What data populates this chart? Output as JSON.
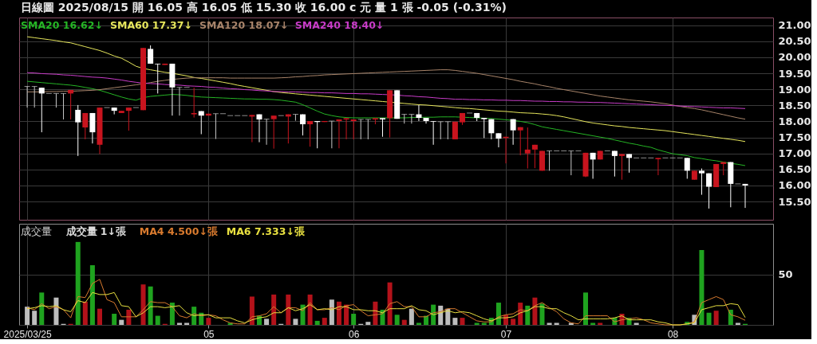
{
  "chart_data": [
    {
      "type": "candlestick",
      "title": "日線圖 2025/08/15 開 16.05 高 16.05 低 15.30 收 16.00 c 元 量 1 張 -0.05 (-0.31%)",
      "legend": "top left",
      "grid": true,
      "tick_labels": "y",
      "categories": [
        "2025/03/25",
        null,
        null,
        null,
        null,
        null,
        null,
        null,
        null,
        null,
        null,
        null,
        null,
        null,
        null,
        null,
        null,
        null,
        null,
        null,
        null,
        null,
        null,
        null,
        null,
        "05",
        null,
        null,
        null,
        null,
        null,
        null,
        null,
        null,
        null,
        null,
        null,
        null,
        null,
        null,
        null,
        null,
        null,
        null,
        null,
        "06",
        null,
        null,
        null,
        null,
        null,
        null,
        null,
        null,
        null,
        null,
        null,
        null,
        null,
        null,
        null,
        null,
        null,
        null,
        null,
        null,
        "07",
        null,
        null,
        null,
        null,
        null,
        null,
        null,
        null,
        null,
        null,
        null,
        null,
        null,
        null,
        null,
        null,
        null,
        null,
        null,
        null,
        null,
        null,
        "08",
        null,
        null,
        null,
        null,
        null,
        null,
        null,
        null,
        null,
        null
      ],
      "ylim": [
        14.93,
        21.24
      ],
      "yticks": [
        {
          "value": 15.5,
          "label": "15.50"
        },
        {
          "value": 16,
          "label": "16.00"
        },
        {
          "value": 16.5,
          "label": "16.50"
        },
        {
          "value": 17,
          "label": "17.00"
        },
        {
          "value": 17.5,
          "label": "17.50"
        },
        {
          "value": 18,
          "label": "18.00"
        },
        {
          "value": 18.5,
          "label": "18.50"
        },
        {
          "value": 19,
          "label": "19.00"
        },
        {
          "value": 19.5,
          "label": "19.50"
        },
        {
          "value": 20,
          "label": "20.00"
        },
        {
          "value": 20.5,
          "label": "20.50"
        },
        {
          "value": 21,
          "label": "21.00"
        }
      ],
      "ohlc": [
        [
          19.09,
          19.09,
          18.43,
          19.09
        ],
        [
          19.09,
          19.09,
          18.43,
          19.09
        ],
        [
          19.05,
          19.05,
          17.66,
          18.87
        ],
        [
          18.87,
          18.87,
          18.87,
          18.87
        ],
        [
          18.87,
          18.87,
          18.43,
          18.87
        ],
        [
          18.87,
          18.87,
          18.06,
          18.87
        ],
        [
          18.87,
          18.98,
          18.06,
          18.98
        ],
        [
          18.36,
          18.51,
          16.92,
          17.97
        ],
        [
          17.81,
          18.26,
          17.44,
          18.26
        ],
        [
          18.26,
          18.26,
          17.31,
          17.66
        ],
        [
          17.27,
          18.43,
          16.98,
          18.43
        ],
        [
          18.43,
          18.43,
          18.43,
          18.43
        ],
        [
          18.43,
          18.43,
          18.22,
          18.33
        ],
        [
          18.26,
          18.33,
          18.26,
          18.33
        ],
        [
          18.33,
          18.43,
          17.71,
          18.43
        ],
        [
          18.43,
          18.43,
          18.43,
          18.43
        ],
        [
          18.35,
          20.29,
          18.35,
          20.29
        ],
        [
          20.26,
          20.37,
          19.8,
          19.8
        ],
        [
          19.8,
          19.8,
          18.87,
          19.78
        ],
        [
          19.76,
          19.8,
          19.76,
          19.8
        ],
        [
          19.8,
          19.8,
          18.18,
          19.06
        ],
        [
          19.06,
          19.06,
          18.18,
          19.06
        ],
        [
          19.06,
          19.06,
          19.06,
          19.06
        ],
        [
          18.22,
          19.05,
          18.12,
          18.26
        ],
        [
          18.32,
          18.32,
          17.6,
          18.18
        ],
        [
          18.18,
          18.24,
          18.18,
          18.24
        ],
        [
          18.24,
          18.24,
          17.45,
          18.24
        ],
        [
          18.24,
          18.24,
          18.24,
          18.24
        ],
        [
          18.18,
          18.18,
          18.18,
          18.18
        ],
        [
          18.18,
          18.18,
          18.18,
          18.18
        ],
        [
          18.18,
          18.18,
          18.18,
          18.18
        ],
        [
          18.15,
          18.2,
          17.35,
          18.2
        ],
        [
          18.22,
          18.22,
          17.35,
          18.06
        ],
        [
          18.07,
          18.07,
          17.27,
          18.07
        ],
        [
          18.07,
          18.18,
          17.15,
          18.18
        ],
        [
          18.18,
          18.18,
          18.18,
          18.18
        ],
        [
          18.15,
          18.22,
          17.31,
          18.22
        ],
        [
          18.22,
          18.22,
          18.02,
          18.22
        ],
        [
          18.22,
          18.22,
          17.56,
          17.91
        ],
        [
          17.91,
          18.01,
          17.21,
          18.01
        ],
        [
          18.01,
          18.01,
          17.16,
          17.98
        ],
        [
          17.98,
          18.01,
          17.98,
          18.01
        ],
        [
          18.01,
          18.01,
          17.16,
          18.01
        ],
        [
          18.01,
          18.06,
          17.16,
          18.06
        ],
        [
          18.06,
          18.1,
          17.44,
          18.1
        ],
        [
          18.01,
          18.06,
          17.44,
          18.06
        ],
        [
          18.06,
          18.06,
          17.44,
          18.06
        ],
        [
          18.06,
          18.06,
          17.44,
          18.06
        ],
        [
          18.06,
          18.1,
          17.91,
          18.1
        ],
        [
          18.1,
          18.1,
          17.52,
          18.06
        ],
        [
          18.1,
          18.97,
          17.5,
          18.97
        ],
        [
          18.97,
          18.97,
          18.08,
          18.08
        ],
        [
          18.22,
          18.22,
          17.93,
          18.22
        ],
        [
          18.22,
          18.22,
          17.93,
          18.22
        ],
        [
          18.22,
          18.51,
          18.01,
          18.11
        ],
        [
          18.11,
          18.11,
          17.93,
          18.01
        ],
        [
          18.01,
          18.01,
          17.27,
          17.99
        ],
        [
          17.99,
          17.99,
          17.44,
          17.99
        ],
        [
          17.99,
          17.99,
          17.44,
          17.99
        ],
        [
          17.44,
          17.99,
          17.44,
          17.99
        ],
        [
          17.97,
          18.26,
          17.89,
          18.26
        ],
        [
          18.26,
          18.26,
          18.26,
          18.26
        ],
        [
          18.26,
          18.26,
          18.01,
          18.11
        ],
        [
          18.11,
          18.11,
          17.48,
          18.07
        ],
        [
          18.07,
          18.07,
          17.44,
          17.63
        ],
        [
          17.63,
          17.63,
          17.19,
          17.46
        ],
        [
          17.48,
          17.52,
          16.69,
          17.52
        ],
        [
          18.07,
          18.07,
          17.27,
          17.72
        ],
        [
          17.72,
          17.82,
          16.94,
          17.82
        ],
        [
          17.0,
          17.81,
          16.53,
          17.12
        ],
        [
          17.12,
          17.27,
          16.54,
          17.27
        ],
        [
          16.46,
          17.08,
          16.46,
          17.08
        ],
        [
          17.08,
          17.08,
          16.46,
          17.08
        ],
        [
          17.08,
          17.08,
          17.08,
          17.08
        ],
        [
          17.08,
          17.08,
          17.08,
          17.08
        ],
        [
          17.08,
          17.08,
          16.32,
          17.08
        ],
        [
          17.08,
          17.08,
          17.08,
          17.08
        ],
        [
          16.28,
          17.02,
          16.26,
          17.02
        ],
        [
          17.02,
          17.02,
          16.21,
          16.81
        ],
        [
          16.81,
          17.08,
          16.81,
          17.08
        ],
        [
          17.08,
          17.08,
          17.08,
          17.08
        ],
        [
          17.08,
          17.08,
          16.28,
          16.92
        ],
        [
          16.92,
          16.98,
          16.18,
          16.98
        ],
        [
          16.98,
          16.98,
          16.4,
          16.86
        ],
        [
          16.86,
          16.86,
          16.86,
          16.86
        ],
        [
          16.86,
          16.86,
          16.86,
          16.86
        ],
        [
          16.86,
          16.86,
          16.86,
          16.86
        ],
        [
          16.82,
          16.86,
          16.32,
          16.86
        ],
        [
          16.86,
          16.86,
          16.86,
          16.86
        ],
        [
          16.86,
          16.86,
          16.86,
          16.86
        ],
        [
          16.86,
          16.86,
          16.86,
          16.86
        ],
        [
          16.86,
          16.86,
          16.21,
          16.46
        ],
        [
          16.18,
          16.46,
          16.18,
          16.46
        ],
        [
          16.46,
          16.53,
          15.71,
          16.38
        ],
        [
          16.38,
          16.38,
          15.28,
          15.96
        ],
        [
          15.95,
          16.67,
          15.95,
          16.67
        ],
        [
          16.67,
          16.73,
          16.32,
          16.73
        ],
        [
          16.73,
          16.73,
          15.32,
          16.05
        ],
        [
          16.05,
          16.05,
          16.05,
          16.05
        ],
        [
          16.05,
          16.05,
          15.3,
          16.0
        ]
      ],
      "colors": [
        "#c8c8c8",
        "#c8c8c8",
        "#ffffff",
        "#c8c8c8",
        "#c8c8c8",
        "#c8c8c8",
        "#c8141e",
        "#ffffff",
        "#c8141e",
        "#ffffff",
        "#c8141e",
        "#c8c8c8",
        "#ffffff",
        "#c8141e",
        "#c8141e",
        "#c8c8c8",
        "#c8141e",
        "#ffffff",
        "#ffffff",
        "#c8141e",
        "#ffffff",
        "#c8c8c8",
        "#c8c8c8",
        "#c8141e",
        "#ffffff",
        "#c8141e",
        "#c8c8c8",
        "#c8c8c8",
        "#c8c8c8",
        "#c8c8c8",
        "#c8c8c8",
        "#c8141e",
        "#ffffff",
        "#c8c8c8",
        "#c8141e",
        "#c8c8c8",
        "#c8141e",
        "#c8c8c8",
        "#ffffff",
        "#c8141e",
        "#ffffff",
        "#c8141e",
        "#c8c8c8",
        "#c8141e",
        "#c8141e",
        "#c8141e",
        "#c8c8c8",
        "#c8c8c8",
        "#c8141e",
        "#ffffff",
        "#c8141e",
        "#ffffff",
        "#c8c8c8",
        "#c8c8c8",
        "#ffffff",
        "#ffffff",
        "#ffffff",
        "#c8c8c8",
        "#c8c8c8",
        "#c8141e",
        "#c8141e",
        "#c8c8c8",
        "#ffffff",
        "#ffffff",
        "#ffffff",
        "#ffffff",
        "#c8141e",
        "#ffffff",
        "#c8141e",
        "#c8141e",
        "#c8141e",
        "#c8141e",
        "#c8c8c8",
        "#c8c8c8",
        "#c8c8c8",
        "#c8c8c8",
        "#c8c8c8",
        "#c8141e",
        "#ffffff",
        "#c8141e",
        "#c8c8c8",
        "#ffffff",
        "#c8141e",
        "#ffffff",
        "#c8c8c8",
        "#c8c8c8",
        "#c8c8c8",
        "#c8141e",
        "#c8c8c8",
        "#c8c8c8",
        "#c8c8c8",
        "#ffffff",
        "#c8141e",
        "#ffffff",
        "#ffffff",
        "#c8141e",
        "#c8141e",
        "#ffffff",
        "#c8c8c8",
        "#ffffff"
      ],
      "series": [
        {
          "type": "line",
          "name": "SMA20 16.62↓",
          "color": "#25b525",
          "values": [
            19.25,
            19.23,
            19.21,
            19.19,
            19.17,
            19.15,
            19.13,
            19.1,
            19.06,
            19.02,
            18.97,
            18.9,
            18.83,
            18.76,
            18.7,
            18.66,
            18.74,
            18.78,
            18.8,
            18.82,
            18.84,
            18.83,
            18.81,
            18.78,
            18.76,
            18.75,
            18.74,
            18.73,
            18.72,
            18.71,
            18.7,
            18.7,
            18.69,
            18.69,
            18.68,
            18.66,
            18.63,
            18.6,
            18.52,
            18.42,
            18.32,
            18.23,
            18.18,
            18.14,
            18.12,
            18.11,
            18.11,
            18.11,
            18.11,
            18.11,
            18.11,
            18.11,
            18.11,
            18.12,
            18.12,
            18.13,
            18.13,
            18.14,
            18.14,
            18.14,
            18.13,
            18.12,
            18.11,
            18.1,
            18.09,
            18.07,
            18.05,
            18.03,
            18.0,
            17.96,
            17.9,
            17.83,
            17.79,
            17.75,
            17.71,
            17.67,
            17.63,
            17.59,
            17.55,
            17.51,
            17.47,
            17.42,
            17.37,
            17.32,
            17.28,
            17.23,
            17.19,
            17.11,
            17.05,
            16.99,
            16.96,
            16.93,
            16.87,
            16.84,
            16.8,
            16.77,
            16.73,
            16.69,
            16.66,
            16.62
          ]
        },
        {
          "type": "line",
          "name": "SMA60 17.37↓",
          "color": "#e6e65c",
          "values": [
            20.64,
            20.61,
            20.58,
            20.55,
            20.52,
            20.48,
            20.45,
            20.39,
            20.33,
            20.27,
            20.21,
            20.13,
            20.04,
            19.97,
            19.85,
            19.72,
            19.65,
            19.61,
            19.57,
            19.53,
            19.5,
            19.46,
            19.42,
            19.37,
            19.34,
            19.3,
            19.26,
            19.22,
            19.18,
            19.13,
            19.09,
            19.05,
            19.01,
            18.97,
            18.93,
            18.9,
            18.88,
            18.86,
            18.84,
            18.82,
            18.8,
            18.78,
            18.76,
            18.74,
            18.72,
            18.7,
            18.68,
            18.66,
            18.64,
            18.62,
            18.6,
            18.58,
            18.56,
            18.54,
            18.52,
            18.51,
            18.49,
            18.47,
            18.45,
            18.43,
            18.41,
            18.4,
            18.38,
            18.36,
            18.34,
            18.32,
            18.31,
            18.29,
            18.27,
            18.26,
            18.25,
            18.23,
            18.21,
            18.18,
            18.14,
            18.09,
            18.04,
            17.99,
            17.95,
            17.92,
            17.89,
            17.86,
            17.84,
            17.81,
            17.79,
            17.77,
            17.75,
            17.73,
            17.71,
            17.68,
            17.65,
            17.62,
            17.59,
            17.56,
            17.53,
            17.5,
            17.47,
            17.44,
            17.41,
            17.37
          ]
        },
        {
          "type": "line",
          "name": "SMA120 18.07↓",
          "color": "#a8846a",
          "values": [
            18.92,
            18.92,
            18.92,
            18.93,
            18.93,
            18.94,
            18.94,
            18.95,
            18.96,
            18.97,
            18.99,
            19.02,
            19.05,
            19.08,
            19.11,
            19.14,
            19.17,
            19.21,
            19.25,
            19.28,
            19.31,
            19.33,
            19.35,
            19.36,
            19.36,
            19.36,
            19.36,
            19.36,
            19.35,
            19.35,
            19.35,
            19.35,
            19.35,
            19.35,
            19.35,
            19.36,
            19.37,
            19.39,
            19.4,
            19.42,
            19.43,
            19.45,
            19.46,
            19.47,
            19.48,
            19.49,
            19.5,
            19.51,
            19.52,
            19.53,
            19.54,
            19.55,
            19.56,
            19.57,
            19.58,
            19.59,
            19.6,
            19.61,
            19.61,
            19.59,
            19.56,
            19.53,
            19.5,
            19.46,
            19.42,
            19.38,
            19.34,
            19.3,
            19.25,
            19.21,
            19.17,
            19.12,
            19.08,
            19.03,
            18.99,
            18.95,
            18.91,
            18.87,
            18.83,
            18.79,
            18.76,
            18.73,
            18.7,
            18.67,
            18.65,
            18.63,
            18.61,
            18.58,
            18.55,
            18.51,
            18.47,
            18.43,
            18.4,
            18.36,
            18.31,
            18.26,
            18.21,
            18.16,
            18.11,
            18.07
          ]
        },
        {
          "type": "line",
          "name": "SMA240 18.40↓",
          "color": "#c83cc8",
          "values": [
            19.52,
            19.51,
            19.49,
            19.48,
            19.47,
            19.45,
            19.44,
            19.42,
            19.4,
            19.38,
            19.37,
            19.35,
            19.32,
            19.29,
            19.25,
            19.22,
            19.19,
            19.18,
            19.17,
            19.15,
            19.14,
            19.13,
            19.11,
            19.1,
            19.09,
            19.07,
            19.06,
            19.04,
            19.02,
            19.01,
            18.99,
            18.98,
            18.96,
            18.95,
            18.93,
            18.93,
            18.92,
            18.92,
            18.91,
            18.9,
            18.9,
            18.89,
            18.89,
            18.88,
            18.87,
            18.87,
            18.86,
            18.86,
            18.85,
            18.84,
            18.83,
            18.82,
            18.8,
            18.79,
            18.77,
            18.76,
            18.74,
            18.72,
            18.71,
            18.69,
            18.69,
            18.68,
            18.68,
            18.67,
            18.67,
            18.66,
            18.66,
            18.65,
            18.65,
            18.64,
            18.63,
            18.63,
            18.62,
            18.62,
            18.61,
            18.61,
            18.6,
            18.6,
            18.59,
            18.59,
            18.58,
            18.57,
            18.56,
            18.55,
            18.54,
            18.53,
            18.52,
            18.51,
            18.5,
            18.49,
            18.48,
            18.47,
            18.46,
            18.45,
            18.44,
            18.43,
            18.42,
            18.42,
            18.41,
            18.4
          ]
        }
      ]
    },
    {
      "type": "bar",
      "title": "成交量",
      "legend": "top left",
      "grid": true,
      "categories": [
        "2025/03/25",
        null,
        null,
        null,
        null,
        null,
        null,
        null,
        null,
        null,
        null,
        null,
        null,
        null,
        null,
        null,
        null,
        null,
        null,
        null,
        null,
        null,
        null,
        null,
        null,
        "05",
        null,
        null,
        null,
        null,
        null,
        null,
        null,
        null,
        null,
        null,
        null,
        null,
        null,
        null,
        null,
        null,
        null,
        null,
        null,
        "06",
        null,
        null,
        null,
        null,
        null,
        null,
        null,
        null,
        null,
        null,
        null,
        null,
        null,
        null,
        null,
        null,
        null,
        null,
        null,
        null,
        "07",
        null,
        null,
        null,
        null,
        null,
        null,
        null,
        null,
        null,
        null,
        null,
        null,
        null,
        null,
        null,
        null,
        null,
        null,
        null,
        null,
        null,
        null,
        "08",
        null,
        null,
        null,
        null,
        null,
        null,
        null,
        null,
        null,
        null
      ],
      "ylim": [
        0,
        100
      ],
      "yticks": [
        {
          "value": 0,
          "label": null
        },
        50
      ],
      "series": [
        {
          "type": "bar",
          "name": "成交量 1↓張",
          "values": [
            18,
            14,
            32,
            0,
            27,
            1,
            1,
            82,
            23,
            59,
            16,
            0,
            11,
            5,
            15,
            0,
            40,
            38,
            9,
            1,
            22,
            2,
            2,
            18,
            12,
            7,
            0,
            0,
            2,
            0,
            0,
            28,
            9,
            6,
            30,
            1,
            30,
            6,
            20,
            30,
            4,
            7,
            25,
            23,
            20,
            11,
            1,
            3,
            23,
            15,
            42,
            10,
            5,
            16,
            2,
            9,
            20,
            19,
            16,
            7,
            7,
            0,
            2,
            2,
            7,
            22,
            10,
            6,
            22,
            19,
            27,
            21,
            2,
            2,
            0,
            2,
            0,
            32,
            2,
            2,
            0,
            7,
            11,
            7,
            2,
            0,
            0,
            0,
            0,
            0,
            0,
            3,
            10,
            74,
            12,
            14,
            0,
            15,
            2,
            1
          ],
          "colors": [
            "#bdbdbd",
            "#bdbdbd",
            "#1fa31f",
            "#bdbdbd",
            "#bdbdbd",
            "#bdbdbd",
            "#b3121a",
            "#1fa31f",
            "#b3121a",
            "#1fa31f",
            "#b3121a",
            "#bdbdbd",
            "#1fa31f",
            "#bdbdbd",
            "#b3121a",
            "#bdbdbd",
            "#b3121a",
            "#1fa31f",
            "#1fa31f",
            "#b3121a",
            "#1fa31f",
            "#bdbdbd",
            "#bdbdbd",
            "#1fa31f",
            "#1fa31f",
            "#b3121a",
            "#bdbdbd",
            "#bdbdbd",
            "#1fa31f",
            "#bdbdbd",
            "#bdbdbd",
            "#b3121a",
            "#1fa31f",
            "#bdbdbd",
            "#b3121a",
            "#bdbdbd",
            "#b3121a",
            "#bdbdbd",
            "#1fa31f",
            "#b3121a",
            "#1fa31f",
            "#b3121a",
            "#bdbdbd",
            "#b3121a",
            "#b3121a",
            "#1fa31f",
            "#bdbdbd",
            "#bdbdbd",
            "#b3121a",
            "#1fa31f",
            "#b3121a",
            "#1fa31f",
            "#b3121a",
            "#bdbdbd",
            "#1fa31f",
            "#1fa31f",
            "#1fa31f",
            "#bdbdbd",
            "#bdbdbd",
            "#bdbdbd",
            "#b3121a",
            "#bdbdbd",
            "#1fa31f",
            "#1fa31f",
            "#1fa31f",
            "#1fa31f",
            "#b3121a",
            "#b3121a",
            "#b3121a",
            "#1fa31f",
            "#b3121a",
            "#1fa31f",
            "#bdbdbd",
            "#bdbdbd",
            "#bdbdbd",
            "#bdbdbd",
            "#bdbdbd",
            "#1fa31f",
            "#1fa31f",
            "#b3121a",
            "#bdbdbd",
            "#1fa31f",
            "#b3121a",
            "#1fa31f",
            "#bdbdbd",
            "#bdbdbd",
            "#bdbdbd",
            "#bdbdbd",
            "#bdbdbd",
            "#bdbdbd",
            "#bdbdbd",
            "#1fa31f",
            "#bdbdbd",
            "#1fa31f",
            "#1fa31f",
            "#b3121a",
            "#bdbdbd",
            "#1fa31f",
            "#bdbdbd",
            "#1fa31f"
          ]
        },
        {
          "type": "line",
          "name": "MA4 4.500↓張",
          "color": "#d87a2e",
          "values": [
            17,
            15,
            21,
            16,
            18,
            15,
            7,
            28,
            27,
            41,
            45,
            25,
            22,
            8,
            8,
            8,
            15,
            23,
            22,
            22,
            18,
            9,
            7,
            11,
            9,
            10,
            9,
            5,
            2,
            1,
            1,
            8,
            9,
            11,
            18,
            12,
            17,
            17,
            14,
            22,
            15,
            15,
            17,
            15,
            19,
            20,
            14,
            9,
            10,
            11,
            21,
            23,
            18,
            18,
            8,
            8,
            12,
            13,
            16,
            16,
            12,
            8,
            4,
            3,
            3,
            8,
            10,
            11,
            15,
            14,
            19,
            22,
            17,
            13,
            6,
            2,
            1,
            9,
            9,
            9,
            9,
            3,
            5,
            6,
            7,
            5,
            2,
            1,
            0,
            0,
            0,
            1,
            3,
            22,
            25,
            28,
            25,
            10,
            8,
            4.5
          ]
        },
        {
          "type": "line",
          "name": "MA6 7.333↓張",
          "color": "#e8e040",
          "values": [
            16,
            17,
            19,
            18,
            19,
            15,
            13,
            24,
            22,
            32,
            30,
            30,
            32,
            19,
            18,
            8,
            12,
            18,
            18,
            17,
            18,
            19,
            12,
            9,
            10,
            10,
            7,
            7,
            7,
            4,
            2,
            5,
            7,
            8,
            12,
            12,
            17,
            14,
            16,
            20,
            15,
            16,
            15,
            18,
            18,
            15,
            15,
            14,
            14,
            12,
            16,
            16,
            16,
            19,
            15,
            14,
            10,
            12,
            14,
            12,
            13,
            12,
            9,
            6,
            4,
            7,
            7,
            8,
            12,
            14,
            18,
            18,
            16,
            16,
            12,
            9,
            5,
            6,
            6,
            6,
            6,
            7,
            9,
            5,
            5,
            5,
            5,
            3,
            2,
            0,
            0,
            1,
            2,
            15,
            17,
            19,
            19,
            21,
            20,
            7.333
          ]
        }
      ]
    }
  ]
}
